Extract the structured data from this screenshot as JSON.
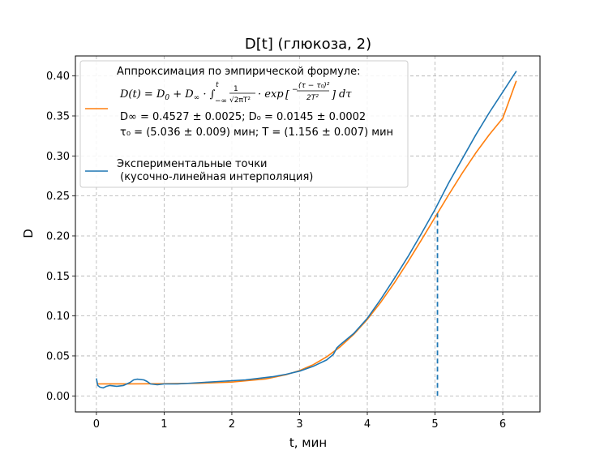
{
  "chart_data": {
    "type": "line",
    "title": "D[t] (глюкоза, 2)",
    "xlabel": "t, мин",
    "ylabel": "D",
    "xlim": [
      -0.31,
      6.55
    ],
    "ylim": [
      -0.02,
      0.425
    ],
    "x_ticks": [
      0,
      1,
      2,
      3,
      4,
      5,
      6
    ],
    "y_ticks": [
      0.0,
      0.05,
      0.1,
      0.15,
      0.2,
      0.25,
      0.3,
      0.35,
      0.4
    ],
    "grid": true,
    "legend_position": "top-left",
    "colors": {
      "fit": "#ff7f0e",
      "experiment": "#1f77b4"
    },
    "parameters": {
      "D_inf": 0.4527,
      "D_0": 0.0145,
      "tau_0": 5.036,
      "T": 1.156
    },
    "tau0_marker_x": 5.036,
    "series": [
      {
        "name": "Аппроксимация по эмпирической формуле:",
        "color": "#ff7f0e",
        "x": [
          0.0,
          0.5,
          1.0,
          1.5,
          2.0,
          2.5,
          2.8,
          3.0,
          3.2,
          3.4,
          3.6,
          3.8,
          4.0,
          4.2,
          4.4,
          4.6,
          4.8,
          5.0,
          5.2,
          5.4,
          5.6,
          5.8,
          6.0,
          6.2
        ],
        "y": [
          0.015,
          0.0151,
          0.0153,
          0.0158,
          0.0173,
          0.0213,
          0.0265,
          0.0317,
          0.039,
          0.0488,
          0.0614,
          0.077,
          0.0957,
          0.1173,
          0.1414,
          0.1676,
          0.1951,
          0.2232,
          0.2512,
          0.2782,
          0.3035,
          0.3266,
          0.3471,
          0.3939
        ]
      },
      {
        "name": "Экспериментальные точки\n (кусочно-линейная интерполяция)",
        "color": "#1f77b4",
        "x": [
          0.0,
          0.02,
          0.05,
          0.1,
          0.15,
          0.2,
          0.3,
          0.4,
          0.5,
          0.55,
          0.6,
          0.7,
          0.75,
          0.8,
          0.9,
          1.0,
          1.2,
          1.4,
          1.6,
          1.8,
          2.0,
          2.2,
          2.4,
          2.6,
          2.8,
          3.0,
          3.2,
          3.4,
          3.5,
          3.55,
          3.6,
          3.8,
          4.0,
          4.2,
          4.4,
          4.6,
          4.8,
          5.0,
          5.2,
          5.4,
          5.6,
          5.8,
          6.0,
          6.2
        ],
        "y": [
          0.022,
          0.013,
          0.011,
          0.01,
          0.012,
          0.013,
          0.012,
          0.013,
          0.017,
          0.02,
          0.021,
          0.02,
          0.018,
          0.015,
          0.014,
          0.015,
          0.015,
          0.016,
          0.017,
          0.018,
          0.019,
          0.02,
          0.022,
          0.024,
          0.027,
          0.031,
          0.037,
          0.045,
          0.052,
          0.06,
          0.064,
          0.078,
          0.097,
          0.121,
          0.147,
          0.174,
          0.203,
          0.233,
          0.266,
          0.296,
          0.326,
          0.354,
          0.38,
          0.406
        ]
      }
    ]
  },
  "legend": {
    "fit_heading": "Аппроксимация по эмпирической формуле:",
    "fit_formula_lhs": "D(t) = D",
    "fit_formula_rhs": "exp",
    "fit_params_1": "D∞ = 0.4527 ± 0.0025; D₀ = 0.0145 ± 0.0002",
    "fit_params_2": "τ₀ = (5.036 ± 0.009) мин; T = (1.156 ± 0.007) мин",
    "exp_line_1": "Экспериментальные точки",
    "exp_line_2": " (кусочно-линейная интерполяция)"
  }
}
